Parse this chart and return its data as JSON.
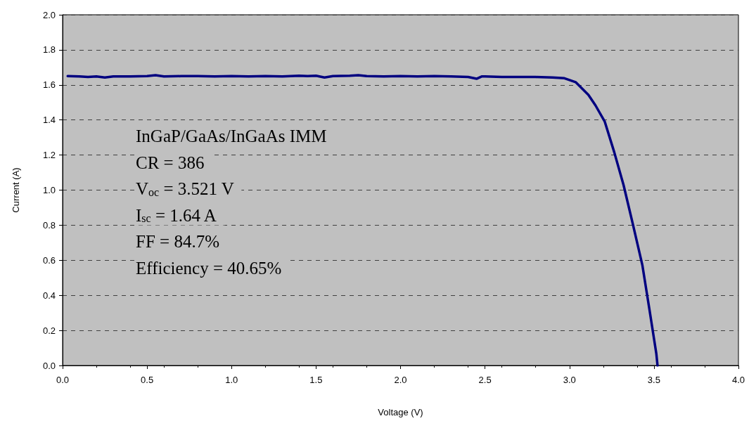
{
  "chart_data": {
    "type": "line",
    "xlabel": "Voltage (V)",
    "ylabel": "Current (A)",
    "x": [
      0.03,
      0.1,
      0.15,
      0.2,
      0.25,
      0.3,
      0.4,
      0.5,
      0.55,
      0.6,
      0.7,
      0.8,
      0.9,
      1.0,
      1.1,
      1.2,
      1.3,
      1.4,
      1.45,
      1.5,
      1.55,
      1.6,
      1.7,
      1.75,
      1.8,
      1.9,
      2.0,
      2.1,
      2.2,
      2.3,
      2.4,
      2.45,
      2.48,
      2.5,
      2.6,
      2.7,
      2.8,
      2.9,
      2.97,
      3.036,
      3.112,
      3.154,
      3.209,
      3.265,
      3.32,
      3.376,
      3.431,
      3.473,
      3.514,
      3.521
    ],
    "series": [
      {
        "color": "#000080",
        "values": [
          1.65,
          1.648,
          1.645,
          1.648,
          1.642,
          1.648,
          1.648,
          1.65,
          1.655,
          1.648,
          1.65,
          1.65,
          1.648,
          1.65,
          1.648,
          1.65,
          1.648,
          1.652,
          1.65,
          1.652,
          1.642,
          1.65,
          1.652,
          1.655,
          1.65,
          1.648,
          1.65,
          1.648,
          1.65,
          1.648,
          1.645,
          1.635,
          1.648,
          1.648,
          1.645,
          1.645,
          1.645,
          1.642,
          1.638,
          1.616,
          1.543,
          1.483,
          1.39,
          1.216,
          1.029,
          0.802,
          0.574,
          0.321,
          0.067,
          0
        ]
      }
    ],
    "xlim": [
      0,
      4
    ],
    "xticks": [
      {
        "value": 0,
        "label": "0.0"
      },
      0.5,
      {
        "value": 1,
        "label": "1.0"
      },
      1.5,
      {
        "value": 2,
        "label": "2.0"
      },
      2.5,
      {
        "value": 3,
        "label": "3.0"
      },
      3.5,
      {
        "value": 4,
        "label": "4.0"
      }
    ],
    "ylim": [
      0,
      2
    ],
    "yticks": [
      {
        "value": 0,
        "label": "0.0"
      },
      0.2,
      0.4,
      0.6,
      0.8,
      {
        "value": 1,
        "label": "1.0"
      },
      1.2,
      1.4,
      1.6,
      1.8,
      {
        "value": 2,
        "label": "2.0"
      }
    ],
    "grid": "y",
    "marker": "none",
    "line_style": "solid",
    "annotations": [
      "InGaP/GaAs/InGaAs IMM",
      "CR = 386",
      "V$_{oc}$ = 3.521 V",
      "I$_{sc}$ = 1.64 A",
      "FF = 84.7%",
      "Efficiency = 40.65%"
    ]
  }
}
